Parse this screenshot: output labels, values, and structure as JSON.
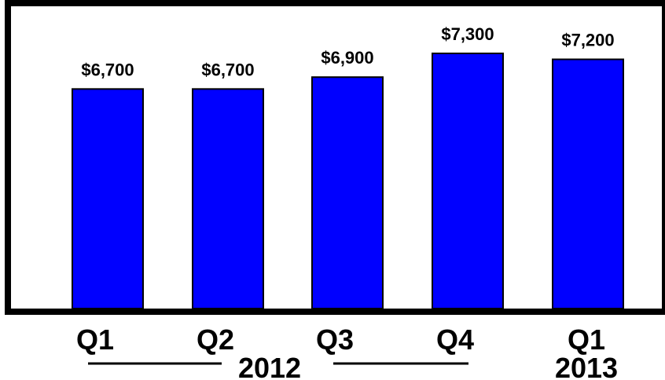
{
  "colors": {
    "bar": "#0000ff",
    "bar_outline": "#000000",
    "frame": "#000000",
    "background": "#ffffff"
  },
  "chart_data": {
    "type": "bar",
    "title": "",
    "xlabel": "",
    "ylabel": "",
    "categories": [
      "Q1",
      "Q2",
      "Q3",
      "Q4",
      "Q1"
    ],
    "values": [
      6700,
      6700,
      6900,
      7300,
      7200
    ],
    "value_labels": [
      "$6,700",
      "$6,700",
      "$6,900",
      "$7,300",
      "$7,200"
    ],
    "category_groups": [
      {
        "label": "2012",
        "categories": [
          "Q1",
          "Q2",
          "Q3",
          "Q4"
        ]
      },
      {
        "label": "2013",
        "categories": [
          "Q1"
        ]
      }
    ],
    "ylim": [
      3000,
      7300
    ],
    "grid": false,
    "legend": "none"
  }
}
